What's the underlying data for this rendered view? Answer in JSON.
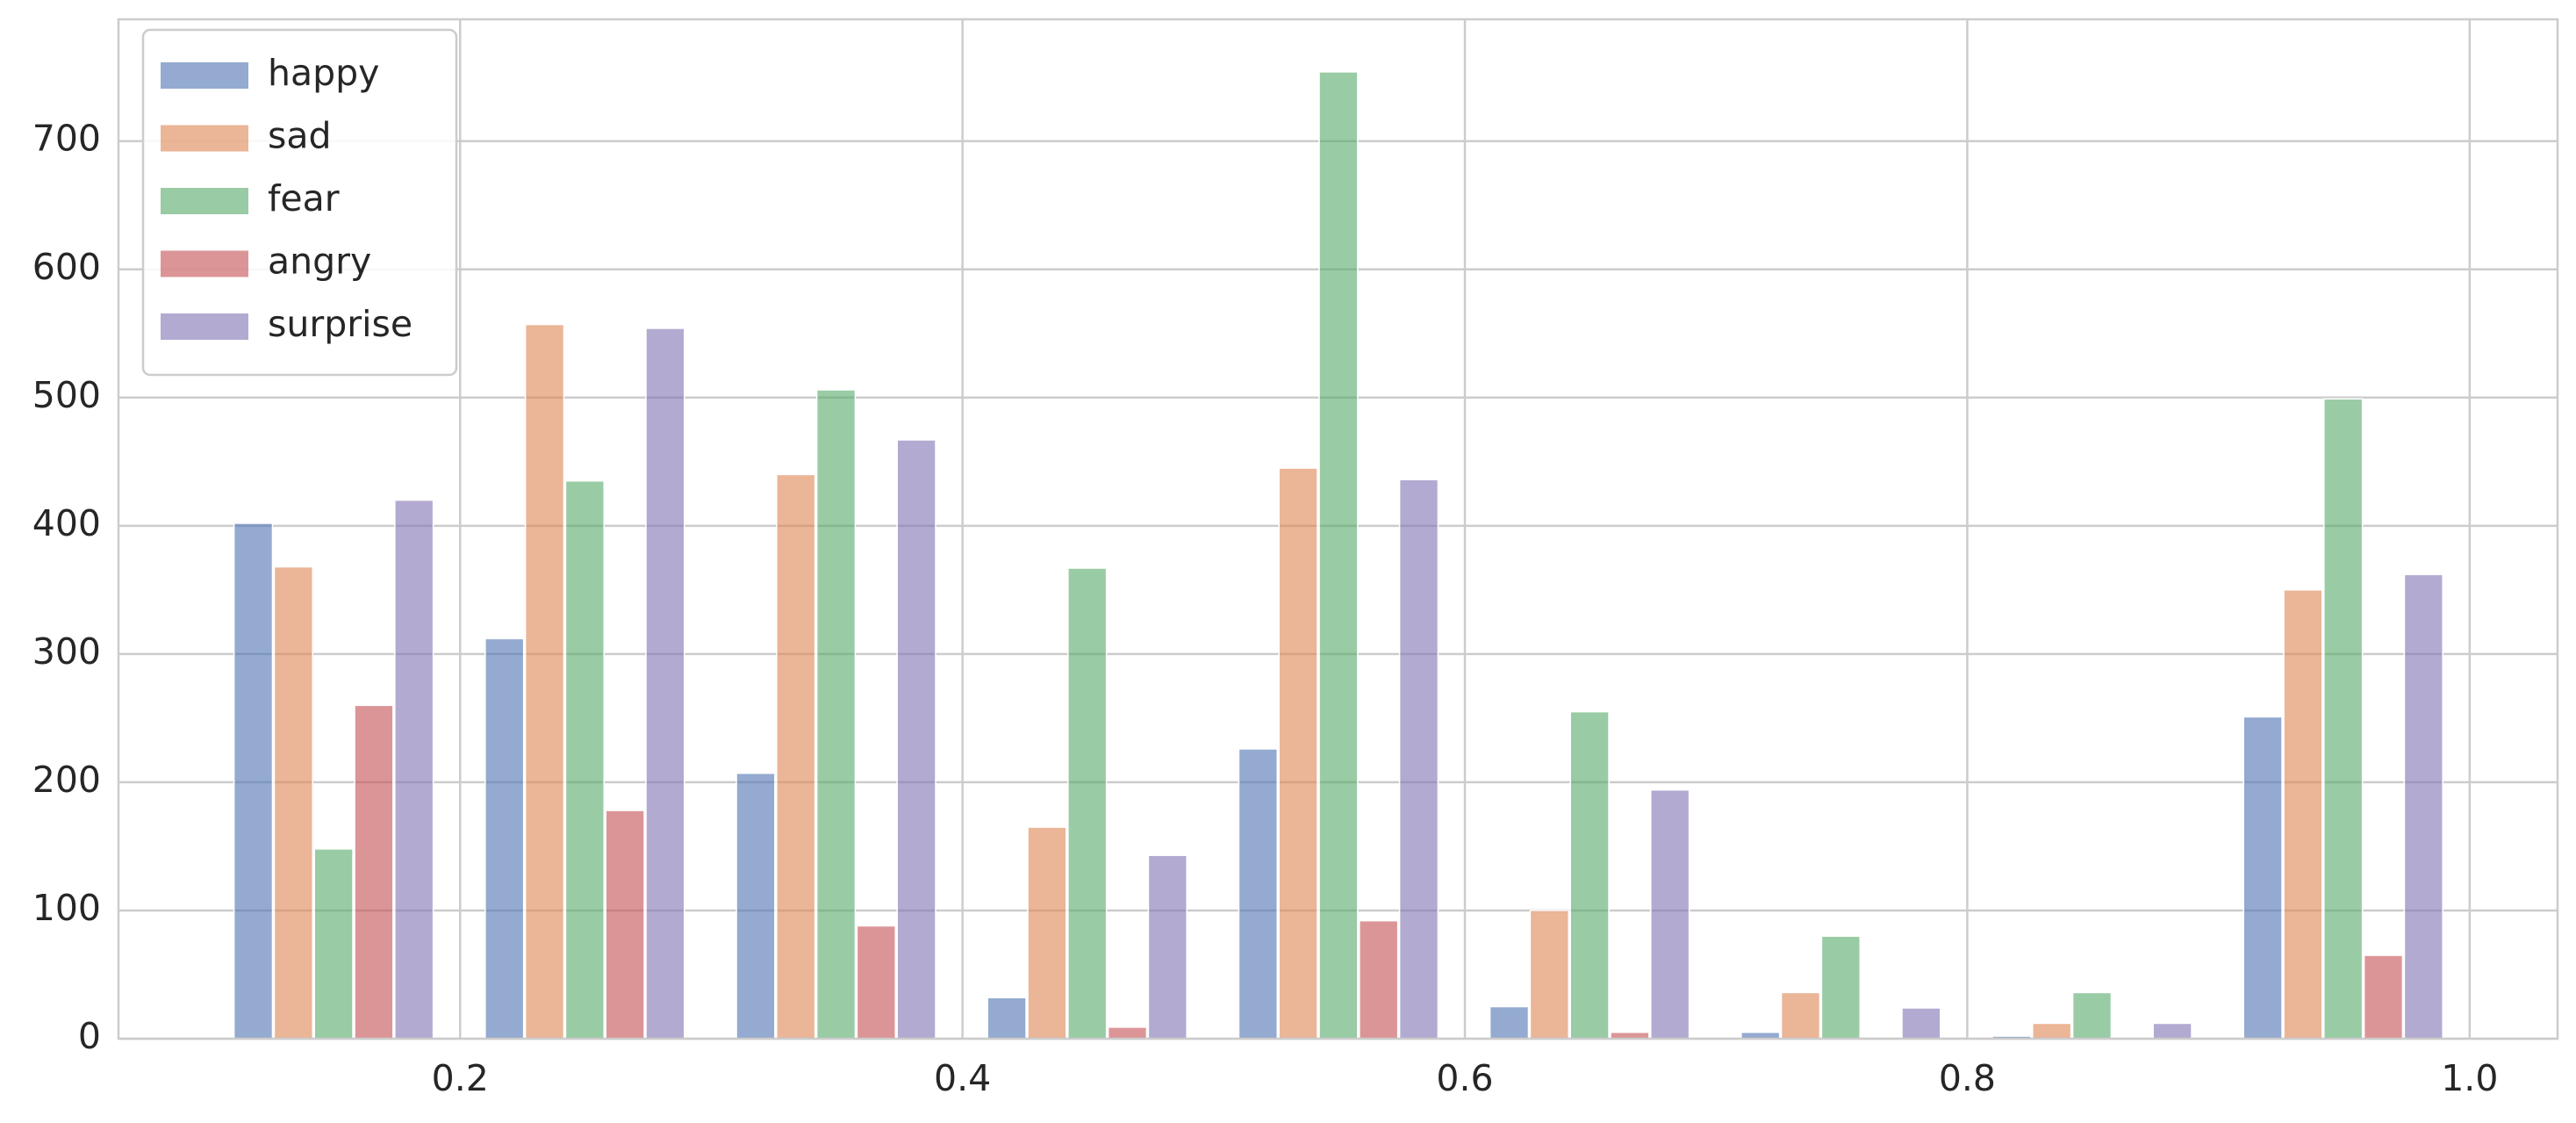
{
  "chart_data": {
    "type": "histogram",
    "bins": [
      0.1,
      0.2,
      0.3,
      0.4,
      0.5,
      0.6,
      0.7,
      0.8,
      0.9,
      1.0
    ],
    "series": [
      {
        "name": "happy",
        "color": "#4c72b0",
        "values": [
          402,
          312,
          207,
          32,
          226,
          25,
          5,
          2,
          251
        ]
      },
      {
        "name": "sad",
        "color": "#dd8452",
        "values": [
          368,
          557,
          440,
          165,
          445,
          100,
          36,
          12,
          350
        ]
      },
      {
        "name": "fear",
        "color": "#55a868",
        "values": [
          148,
          435,
          506,
          367,
          754,
          255,
          80,
          36,
          499
        ]
      },
      {
        "name": "angry",
        "color": "#c44e52",
        "values": [
          260,
          178,
          88,
          9,
          92,
          5,
          0,
          0,
          65
        ]
      },
      {
        "name": "surprise",
        "color": "#8172b3",
        "values": [
          420,
          554,
          467,
          143,
          436,
          194,
          24,
          12,
          362
        ]
      }
    ],
    "xlim": [
      0.064,
      1.035
    ],
    "ylim": [
      0,
      795
    ],
    "xticks": [
      0.2,
      0.4,
      0.6,
      0.8,
      {
        "value": 1.0,
        "label": "1.0"
      }
    ],
    "yticks": [
      0,
      100,
      200,
      300,
      400,
      500,
      600,
      700
    ],
    "grid": true,
    "legend": "upper-left"
  }
}
